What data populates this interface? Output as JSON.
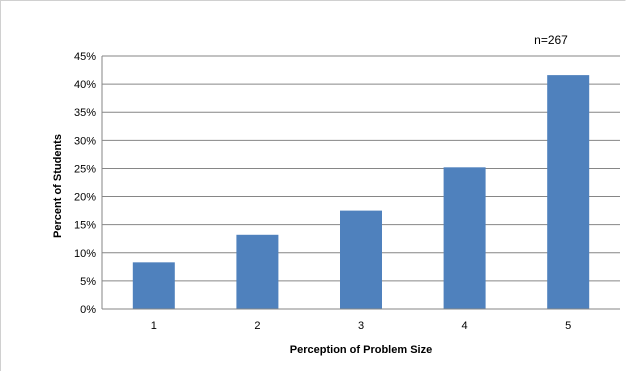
{
  "chart_data": {
    "type": "bar",
    "categories": [
      "1",
      "2",
      "3",
      "4",
      "5"
    ],
    "values": [
      8.3,
      13.2,
      17.5,
      25.2,
      41.6
    ],
    "value_unit": "%",
    "xlabel": "Perception of Problem Size",
    "ylabel": "Percent of Students",
    "ylim": [
      0,
      45
    ],
    "yticks": [
      "0%",
      "5%",
      "10%",
      "15%",
      "20%",
      "25%",
      "30%",
      "35%",
      "40%",
      "45%"
    ],
    "annotation": "n=267",
    "grid": true,
    "legend": "none",
    "bar_color": "#4F81BD"
  }
}
